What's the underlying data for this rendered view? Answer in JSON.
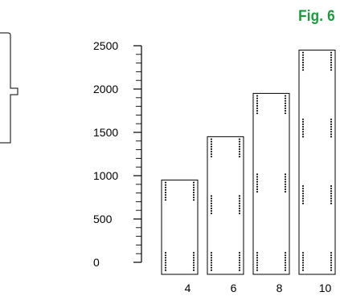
{
  "figure": {
    "label": "Fig. 6",
    "label_color": "#1a9a3c"
  },
  "chart_data": {
    "type": "bar",
    "categories": [
      "4",
      "6",
      "8",
      "10"
    ],
    "values": [
      950,
      1450,
      1950,
      2450
    ],
    "y_ticks": [
      "0",
      "500",
      "1000",
      "1500",
      "2000",
      "2500"
    ],
    "x_ticks": [
      "4",
      "6",
      "8",
      "10"
    ],
    "ylim": [
      0,
      2500
    ],
    "xlabel": "",
    "ylabel": "",
    "title": "",
    "grid": false,
    "bar_style": "outlined rectangles with dotted vertical strips"
  }
}
